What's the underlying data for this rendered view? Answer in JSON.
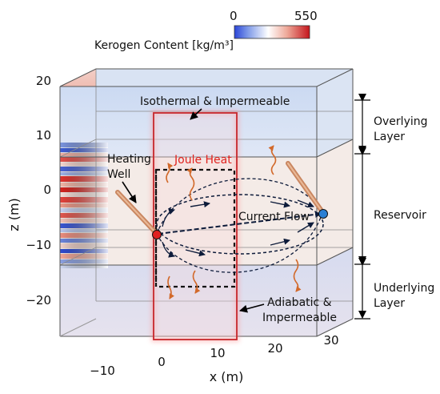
{
  "colorbar": {
    "title": "Kerogen Content [kg/m³]",
    "min_label": "0",
    "max_label": "550",
    "colors": [
      "#2a45d8",
      "#ffffff",
      "#c4151c"
    ]
  },
  "axes": {
    "z_label": "z (m)",
    "x_label": "x (m)",
    "z_ticks": [
      "20",
      "10",
      "0",
      "−10",
      "−20"
    ],
    "x_ticks": [
      "−10",
      "0",
      "10",
      "20",
      "30"
    ]
  },
  "annotations": {
    "top_boundary": "Isothermal & Impermeable",
    "bottom_boundary_line1": "Adiabatic &",
    "bottom_boundary_line2": "Impermeable",
    "heating_well_line1": "Heating",
    "heating_well_line2": "Well",
    "joule_heat": "Joule Heat",
    "current_flow": "Current Flow"
  },
  "layers": {
    "overlying_line1": "Overlying",
    "overlying_line2": "Layer",
    "reservoir": "Reservoir",
    "underlying_line1": "Underlying",
    "underlying_line2": "Layer"
  },
  "colors": {
    "top_face": "#f2c9c2",
    "overlying": "#c8d8f0",
    "reservoir": "#f4ebe7",
    "underlying": "#d8dcef",
    "electrode_left": "#e02020",
    "electrode_right": "#2a7fd4",
    "joule_heat_wave": "#d2692a"
  }
}
